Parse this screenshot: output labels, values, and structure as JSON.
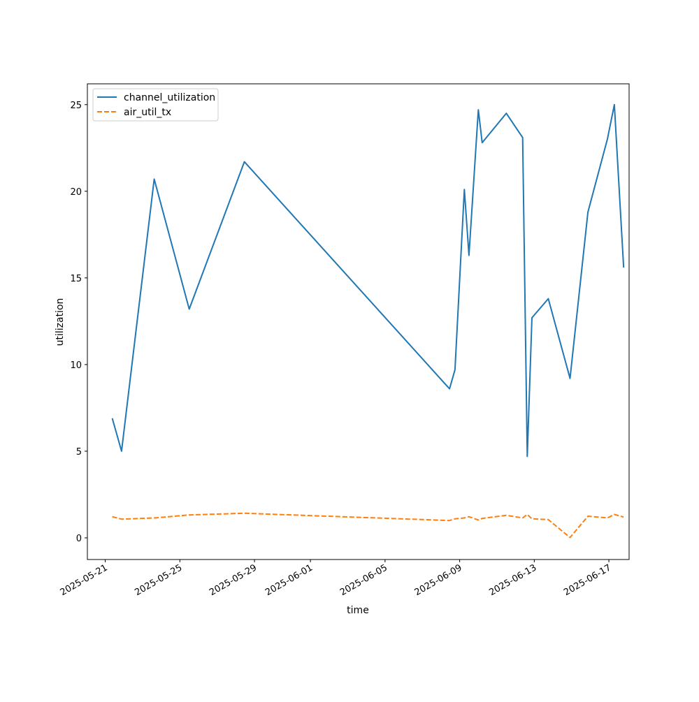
{
  "chart_data": {
    "type": "line",
    "title": "",
    "xlabel": "time",
    "ylabel": "utilization",
    "x_axis_type": "date",
    "xlim": [
      "2025-05-20T01:00",
      "2025-06-18T02:00"
    ],
    "ylim": [
      -1.25,
      26.2
    ],
    "xticks": [
      "2025-05-21",
      "2025-05-25",
      "2025-05-29",
      "2025-06-01",
      "2025-06-05",
      "2025-06-09",
      "2025-06-13",
      "2025-06-17"
    ],
    "yticks": [
      0,
      5,
      10,
      15,
      20,
      25
    ],
    "grid": false,
    "legend": "top-left",
    "series": [
      {
        "name": "channel_utilization",
        "color": "#1f77b4",
        "style": "solid",
        "x": [
          "2025-05-21T09:00",
          "2025-05-21T21:00",
          "2025-05-23T15:00",
          "2025-05-25T12:00",
          "2025-05-28T11:00",
          "2025-06-08T11:00",
          "2025-06-08T18:00",
          "2025-06-09T06:00",
          "2025-06-09T12:00",
          "2025-06-10T00:00",
          "2025-06-10T05:00",
          "2025-06-11T12:00",
          "2025-06-12T09:00",
          "2025-06-12T15:00",
          "2025-06-12T21:00",
          "2025-06-13T18:00",
          "2025-06-14T22:00",
          "2025-06-15T21:00",
          "2025-06-16T22:00",
          "2025-06-17T07:00",
          "2025-06-17T19:00"
        ],
        "y": [
          6.9,
          5.0,
          20.7,
          13.2,
          21.7,
          8.6,
          9.7,
          20.1,
          16.3,
          24.7,
          22.8,
          24.5,
          23.1,
          4.7,
          12.7,
          13.8,
          9.2,
          18.8,
          23.0,
          25.0,
          15.6
        ]
      },
      {
        "name": "air_util_tx",
        "color": "#ff7f0e",
        "style": "dashed",
        "x": [
          "2025-05-21T09:00",
          "2025-05-21T21:00",
          "2025-05-23T15:00",
          "2025-05-25T12:00",
          "2025-05-28T11:00",
          "2025-06-08T11:00",
          "2025-06-08T18:00",
          "2025-06-09T06:00",
          "2025-06-09T12:00",
          "2025-06-10T00:00",
          "2025-06-10T05:00",
          "2025-06-11T12:00",
          "2025-06-12T09:00",
          "2025-06-12T15:00",
          "2025-06-12T21:00",
          "2025-06-13T18:00",
          "2025-06-14T22:00",
          "2025-06-15T21:00",
          "2025-06-16T22:00",
          "2025-06-17T07:00",
          "2025-06-17T19:00"
        ],
        "y": [
          1.22,
          1.08,
          1.15,
          1.32,
          1.42,
          1.0,
          1.1,
          1.15,
          1.22,
          1.03,
          1.12,
          1.3,
          1.15,
          1.35,
          1.1,
          1.05,
          0.02,
          1.25,
          1.15,
          1.35,
          1.2
        ]
      }
    ]
  }
}
